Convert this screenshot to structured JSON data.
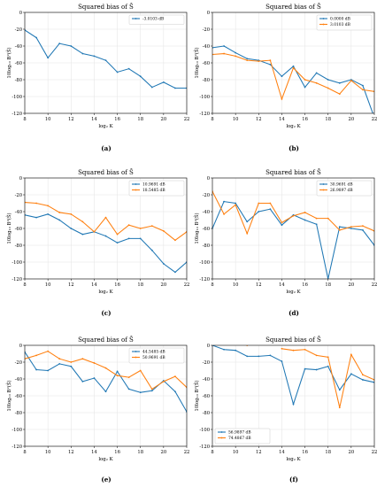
{
  "colors": {
    "blue": "#1f77b4",
    "orange": "#ff7f0e",
    "grid": "#e3e3e3",
    "frame": "#000000"
  },
  "chart_data": [
    {
      "type": "line",
      "panel_label": "(a)",
      "title": "Squared bias of Ŝ",
      "ylabel": "10log₁₀ B²(Ŝ)",
      "xlabel": "log₂ K",
      "xlim": [
        8,
        22
      ],
      "ylim": [
        -120,
        0
      ],
      "xticks": [
        8,
        10,
        12,
        14,
        16,
        18,
        20,
        22
      ],
      "yticks": [
        0,
        -20,
        -40,
        -60,
        -80,
        -100,
        -120
      ],
      "grid": true,
      "legend_position": "top-right",
      "x": [
        8,
        9,
        10,
        11,
        12,
        13,
        14,
        15,
        16,
        17,
        18,
        19,
        20,
        21,
        22
      ],
      "series": [
        {
          "name": "-3.0103 dB",
          "color": "blue",
          "values": [
            -21,
            -30,
            -54,
            -37,
            -40,
            -49,
            -52,
            -57,
            -71,
            -67,
            -76,
            -89,
            -83,
            -90,
            -90
          ]
        }
      ]
    },
    {
      "type": "line",
      "panel_label": "(b)",
      "title": "Squared bias of Ŝ",
      "ylabel": "10log₁₀ B²(Ŝ)",
      "xlabel": "log₂ K",
      "xlim": [
        8,
        22
      ],
      "ylim": [
        -120,
        0
      ],
      "xticks": [
        8,
        10,
        12,
        14,
        16,
        18,
        20,
        22
      ],
      "yticks": [
        0,
        -20,
        -40,
        -60,
        -80,
        -100,
        -120
      ],
      "grid": true,
      "legend_position": "top-right",
      "x": [
        8,
        9,
        10,
        11,
        12,
        13,
        14,
        15,
        16,
        17,
        18,
        19,
        20,
        21,
        22
      ],
      "series": [
        {
          "name": "0.0000 dB",
          "color": "blue",
          "values": [
            -42,
            -40,
            -48,
            -55,
            -57,
            -62,
            -76,
            -64,
            -89,
            -72,
            -80,
            -84,
            -80,
            -87,
            -125
          ]
        },
        {
          "name": "3.0103 dB",
          "color": "orange",
          "values": [
            -50,
            -49,
            -52,
            -57,
            -58,
            -57,
            -103,
            -66,
            -80,
            -84,
            -90,
            -97,
            -81,
            -92,
            -94
          ]
        }
      ]
    },
    {
      "type": "line",
      "panel_label": "(c)",
      "title": "Squared bias of Ŝ",
      "ylabel": "10log₁₀ B²(Ŝ)",
      "xlabel": "log₂ K",
      "xlim": [
        8,
        22
      ],
      "ylim": [
        -120,
        0
      ],
      "xticks": [
        8,
        10,
        12,
        14,
        16,
        18,
        20,
        22
      ],
      "yticks": [
        0,
        -20,
        -40,
        -60,
        -80,
        -100,
        -120
      ],
      "grid": true,
      "legend_position": "top-right",
      "x": [
        8,
        9,
        10,
        11,
        12,
        13,
        14,
        15,
        16,
        17,
        18,
        19,
        20,
        21,
        22
      ],
      "series": [
        {
          "name": "10.9691 dB",
          "color": "blue",
          "values": [
            -44,
            -47,
            -43,
            -50,
            -60,
            -67,
            -64,
            -69,
            -77,
            -72,
            -72,
            -86,
            -102,
            -112,
            -100
          ]
        },
        {
          "name": "18.5485 dB",
          "color": "orange",
          "values": [
            -29,
            -30,
            -33,
            -41,
            -43,
            -52,
            -64,
            -47,
            -67,
            -56,
            -60,
            -57,
            -63,
            -74,
            -64
          ]
        }
      ]
    },
    {
      "type": "line",
      "panel_label": "(d)",
      "title": "Squared bias of Ŝ",
      "ylabel": "10log₁₀ B²(Ŝ)",
      "xlabel": "log₂ K",
      "xlim": [
        8,
        22
      ],
      "ylim": [
        -120,
        0
      ],
      "xticks": [
        8,
        10,
        12,
        14,
        16,
        18,
        20,
        22
      ],
      "yticks": [
        0,
        -20,
        -40,
        -60,
        -80,
        -100,
        -120
      ],
      "grid": true,
      "legend_position": "top-right",
      "x": [
        8,
        9,
        10,
        11,
        12,
        13,
        14,
        15,
        16,
        17,
        18,
        19,
        20,
        21,
        22
      ],
      "series": [
        {
          "name": "30.9691 dB",
          "color": "blue",
          "values": [
            -60,
            -28,
            -30,
            -52,
            -40,
            -37,
            -56,
            -44,
            -50,
            -55,
            -120,
            -58,
            -60,
            -62,
            -80
          ]
        },
        {
          "name": "26.9897 dB",
          "color": "orange",
          "values": [
            -16,
            -43,
            -32,
            -66,
            -30,
            -30,
            -53,
            -45,
            -41,
            -48,
            -48,
            -62,
            -58,
            -57,
            -63
          ]
        }
      ]
    },
    {
      "type": "line",
      "panel_label": "(e)",
      "title": "Squared bias of Ŝ",
      "ylabel": "10log₁₀ B²(Ŝ)",
      "xlabel": "log₂ K",
      "xlim": [
        8,
        22
      ],
      "ylim": [
        -120,
        0
      ],
      "xticks": [
        8,
        10,
        12,
        14,
        16,
        18,
        20,
        22
      ],
      "yticks": [
        0,
        -20,
        -40,
        -60,
        -80,
        -100,
        -120
      ],
      "grid": true,
      "legend_position": "top-right",
      "x": [
        8,
        9,
        10,
        11,
        12,
        13,
        14,
        15,
        16,
        17,
        18,
        19,
        20,
        21,
        22
      ],
      "series": [
        {
          "name": "44.5485 dB",
          "color": "blue",
          "values": [
            -8,
            -29,
            -30,
            -22,
            -25,
            -43,
            -39,
            -55,
            -31,
            -52,
            -56,
            -54,
            -42,
            -55,
            -79
          ]
        },
        {
          "name": "50.9691 dB",
          "color": "orange",
          "values": [
            -16,
            -12,
            -7,
            -16,
            -20,
            -16,
            -21,
            -27,
            -36,
            -38,
            -30,
            -52,
            -43,
            -37,
            -50
          ]
        }
      ]
    },
    {
      "type": "line",
      "panel_label": "(f)",
      "title": "Squared bias of Ŝ",
      "ylabel": "10log₁₀ B²(Ŝ)",
      "xlabel": "log₂ K",
      "xlim": [
        8,
        22
      ],
      "ylim": [
        -120,
        0
      ],
      "xticks": [
        8,
        10,
        12,
        14,
        16,
        18,
        20,
        22
      ],
      "yticks": [
        0,
        -20,
        -40,
        -60,
        -80,
        -100,
        -120
      ],
      "grid": true,
      "legend_position": "bottom-left",
      "x": [
        8,
        9,
        10,
        11,
        12,
        13,
        14,
        15,
        16,
        17,
        18,
        19,
        20,
        21,
        22
      ],
      "series": [
        {
          "name": "56.9897 dB",
          "color": "blue",
          "values": [
            0,
            -5,
            -6,
            -13,
            -13,
            -12,
            -19,
            -70,
            -28,
            -29,
            -25,
            -53,
            -34,
            -41,
            -44
          ]
        },
        {
          "name": "74.4867 dB",
          "color": "orange",
          "values": [
            null,
            null,
            null,
            0,
            null,
            null,
            -4,
            -6,
            -5,
            -12,
            -14,
            -74,
            -11,
            -35,
            -41
          ]
        }
      ]
    }
  ]
}
